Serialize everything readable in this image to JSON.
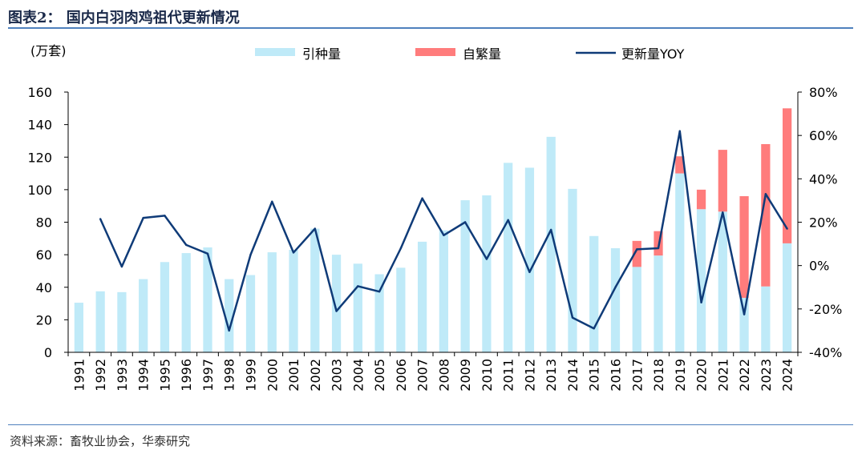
{
  "title": "图表2：  国内白羽肉鸡祖代更新情况",
  "source": "资料来源：畜牧业协会，华泰研究",
  "colors": {
    "intro": "#bfeaf8",
    "self": "#ff7c7c",
    "yoy": "#0f3b78",
    "rule": "#4f81bd"
  },
  "chart_data": {
    "type": "bar",
    "title": "国内白羽肉鸡祖代更新情况",
    "unit_label": "(万套)",
    "categories": [
      "1991",
      "1992",
      "1993",
      "1994",
      "1995",
      "1996",
      "1997",
      "1998",
      "1999",
      "2000",
      "2001",
      "2002",
      "2003",
      "2004",
      "2005",
      "2006",
      "2007",
      "2008",
      "2009",
      "2010",
      "2011",
      "2012",
      "2013",
      "2014",
      "2015",
      "2016",
      "2017",
      "2018",
      "2019",
      "2020",
      "2021",
      "2022",
      "2023",
      "2024"
    ],
    "series": [
      {
        "name": "引种量",
        "kind": "stacked-bar",
        "values": [
          30.5,
          37.5,
          37,
          45,
          55.5,
          61,
          64.5,
          45,
          47.5,
          61.5,
          63,
          76,
          60,
          54.5,
          48,
          52,
          68,
          75,
          93.5,
          96.5,
          116.5,
          113.5,
          132.5,
          100.5,
          71.5,
          64,
          52.5,
          59.5,
          110,
          88,
          86.5,
          33.5,
          40.5,
          67
        ]
      },
      {
        "name": "自繁量",
        "kind": "stacked-bar",
        "values": [
          0,
          0,
          0,
          0,
          0,
          0,
          0,
          0,
          0,
          0,
          0,
          0,
          0,
          0,
          0,
          0,
          0,
          0,
          0,
          0,
          0,
          0,
          0,
          0,
          0,
          0,
          16,
          15,
          10.5,
          12,
          38,
          62.5,
          87.5,
          83
        ]
      },
      {
        "name": "更新量YOY",
        "kind": "line",
        "axis": "right",
        "values": [
          null,
          21.5,
          -0.5,
          22,
          23,
          9.5,
          5.5,
          -30,
          5,
          29.5,
          6,
          17,
          -21,
          -9.5,
          -12,
          8,
          31,
          14,
          20,
          3,
          21,
          -3,
          16.5,
          -24,
          -29,
          -10,
          7.5,
          8,
          62,
          -17,
          24.5,
          -22.5,
          33,
          17
        ]
      }
    ],
    "y_left": {
      "min": 0,
      "max": 160,
      "ticks": [
        "0",
        "20",
        "40",
        "60",
        "80",
        "100",
        "120",
        "140",
        "160"
      ]
    },
    "y_right": {
      "min": -40,
      "max": 80,
      "ticks": [
        "-40%",
        "-20%",
        "0%",
        "20%",
        "40%",
        "60%",
        "80%"
      ]
    },
    "legend_position": "top"
  }
}
